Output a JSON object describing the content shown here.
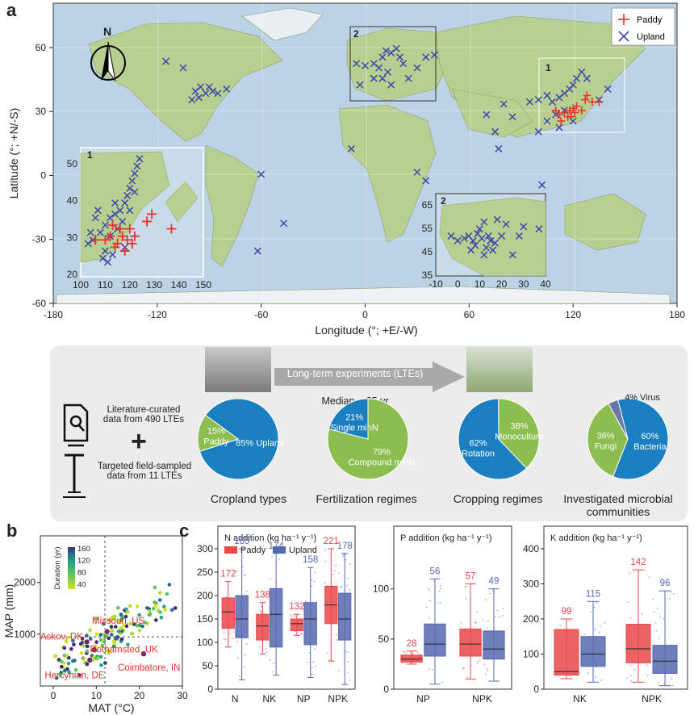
{
  "panel_a": {
    "letter": "a",
    "legend": [
      "Paddy",
      "Upland"
    ],
    "xlabel": "Longitude (°; +E/-W)",
    "ylabel": "Latitude (°; +N/-S)",
    "xticks": [
      "-180",
      "-120",
      "-60",
      "0",
      "60",
      "120",
      "180"
    ],
    "yticks": [
      "60",
      "30",
      "0",
      "-30",
      "-60"
    ],
    "compass": "N",
    "box_labels": [
      "1",
      "2"
    ],
    "inset1": {
      "label": "1",
      "xticks": [
        "100",
        "110",
        "120",
        "130",
        "140",
        "150"
      ],
      "yticks": [
        "50",
        "40",
        "30",
        "20"
      ]
    },
    "inset2": {
      "label": "2",
      "xticks": [
        "-10",
        "0",
        "10",
        "20",
        "30",
        "40"
      ],
      "yticks": [
        "65",
        "55",
        "45",
        "35"
      ]
    },
    "colors": {
      "paddy": "#e8332a",
      "upland": "#3b4aa8",
      "ocean": "#bcd3e6",
      "land": "#b9cf92"
    }
  },
  "lte_header": {
    "banner": "Long-term experiments (LTEs)",
    "median": "Median = 25 yr"
  },
  "data_sources": {
    "literature": "Literature-curated\ndata from 490 LTEs",
    "targeted": "Targeted field-sampled\ndata from 11 LTEs",
    "plus": "+"
  },
  "chart_data": [
    {
      "type": "pie",
      "title": "Cropland types",
      "slices": [
        {
          "label": "Upland",
          "value": 85,
          "text": "85%  Upland",
          "color": "#1a7fc0"
        },
        {
          "label": "Paddy",
          "value": 15,
          "text": "15%\nPaddy",
          "color": "#8cbd4f"
        }
      ]
    },
    {
      "type": "pie",
      "title": "Fertilization regimes",
      "slices": [
        {
          "label": "Compound minN",
          "value": 79,
          "text": "79%\nCompound minN",
          "color": "#8cbd4f"
        },
        {
          "label": "Single minN",
          "value": 21,
          "text": "21%\nSingle minN",
          "color": "#1a7fc0"
        }
      ]
    },
    {
      "type": "pie",
      "title": "Cropping regimes",
      "slices": [
        {
          "label": "Rotation",
          "value": 62,
          "text": "62%\nRotation",
          "color": "#1a7fc0"
        },
        {
          "label": "Monoculture",
          "value": 38,
          "text": "38%\nMonoculture",
          "color": "#8cbd4f"
        }
      ]
    },
    {
      "type": "pie",
      "title": "Investigated microbial\ncommunities",
      "slices": [
        {
          "label": "Bacteria",
          "value": 60,
          "text": "60%\nBacteria",
          "color": "#1a7fc0"
        },
        {
          "label": "Fungi",
          "value": 36,
          "text": "36%\nFungi",
          "color": "#8cbd4f"
        },
        {
          "label": "Virus",
          "value": 4,
          "text": "4%  Virus",
          "color": "#6b76a8"
        }
      ]
    },
    {
      "type": "scatter",
      "panel": "b",
      "xlabel": "MAT (°C)",
      "ylabel": "MAP (mm)",
      "xlim": [
        -3,
        30
      ],
      "ylim": [
        0,
        2900
      ],
      "xticks": [
        0,
        10,
        20,
        30
      ],
      "yticks": [
        1000,
        2000
      ],
      "colorbar": {
        "title": "Duration (yr)",
        "ticks": [
          40,
          80,
          120,
          160
        ]
      },
      "hlines": [
        950
      ],
      "vlines": [
        12
      ],
      "sites": [
        {
          "name": "Missouri, US",
          "x": 12.5,
          "y": 1050
        },
        {
          "name": "Askov, DK",
          "x": 7.8,
          "y": 850
        },
        {
          "name": "Rothamsted, UK",
          "x": 9.5,
          "y": 700
        },
        {
          "name": "Coimbatore, IN",
          "x": 21,
          "y": 620
        },
        {
          "name": "Hercynian, DE",
          "x": 8.5,
          "y": 500
        }
      ]
    },
    {
      "type": "box",
      "panel": "c1",
      "title": "N addition (kg ha⁻¹ y⁻¹)",
      "ylim": [
        0,
        300
      ],
      "yticks": [
        0,
        50,
        100,
        150,
        200,
        250,
        300
      ],
      "legend": [
        "Paddy",
        "Upland"
      ],
      "categories": [
        "N",
        "NK",
        "NP",
        "NPK"
      ],
      "paddy": {
        "n": [
          172,
          138,
          132,
          221
        ],
        "median": [
          165,
          135,
          140,
          180
        ],
        "q1": [
          130,
          105,
          125,
          140
        ],
        "q3": [
          195,
          160,
          150,
          220
        ],
        "lo": [
          90,
          75,
          115,
          60
        ],
        "hi": [
          230,
          185,
          160,
          300
        ]
      },
      "upland": {
        "n": [
          165,
          174,
          158,
          178
        ],
        "median": [
          150,
          160,
          150,
          150
        ],
        "q1": [
          110,
          90,
          95,
          105
        ],
        "q3": [
          200,
          215,
          185,
          205
        ],
        "lo": [
          20,
          30,
          25,
          10
        ],
        "hi": [
          300,
          290,
          260,
          290
        ]
      }
    },
    {
      "type": "box",
      "panel": "c2",
      "title": "P addition (kg ha⁻¹ y⁻¹)",
      "ylim": [
        0,
        140
      ],
      "yticks": [
        0,
        50,
        100
      ],
      "categories": [
        "NP",
        "NPK"
      ],
      "paddy": {
        "n": [
          28,
          57
        ],
        "median": [
          30,
          45
        ],
        "q1": [
          27,
          33
        ],
        "q3": [
          34,
          60
        ],
        "lo": [
          25,
          10
        ],
        "hi": [
          38,
          105
        ]
      },
      "upland": {
        "n": [
          56,
          49
        ],
        "median": [
          45,
          40
        ],
        "q1": [
          33,
          30
        ],
        "q3": [
          65,
          58
        ],
        "lo": [
          5,
          8
        ],
        "hi": [
          110,
          100
        ]
      }
    },
    {
      "type": "box",
      "panel": "c3",
      "title": "K addition (kg ha⁻¹ y⁻¹)",
      "ylim": [
        0,
        400
      ],
      "yticks": [
        0,
        100,
        200,
        300,
        400
      ],
      "categories": [
        "NK",
        "NPK"
      ],
      "paddy": {
        "n": [
          99,
          142
        ],
        "median": [
          50,
          115
        ],
        "q1": [
          40,
          75
        ],
        "q3": [
          170,
          185
        ],
        "lo": [
          30,
          20
        ],
        "hi": [
          200,
          340
        ]
      },
      "upland": {
        "n": [
          115,
          96
        ],
        "median": [
          100,
          80
        ],
        "q1": [
          65,
          45
        ],
        "q3": [
          150,
          125
        ],
        "lo": [
          20,
          10
        ],
        "hi": [
          250,
          280
        ]
      }
    }
  ],
  "panel_b_letter": "b",
  "panel_c_letter": "c",
  "box_colors": {
    "paddy": "#e8484a",
    "upland": "#5568b0"
  }
}
